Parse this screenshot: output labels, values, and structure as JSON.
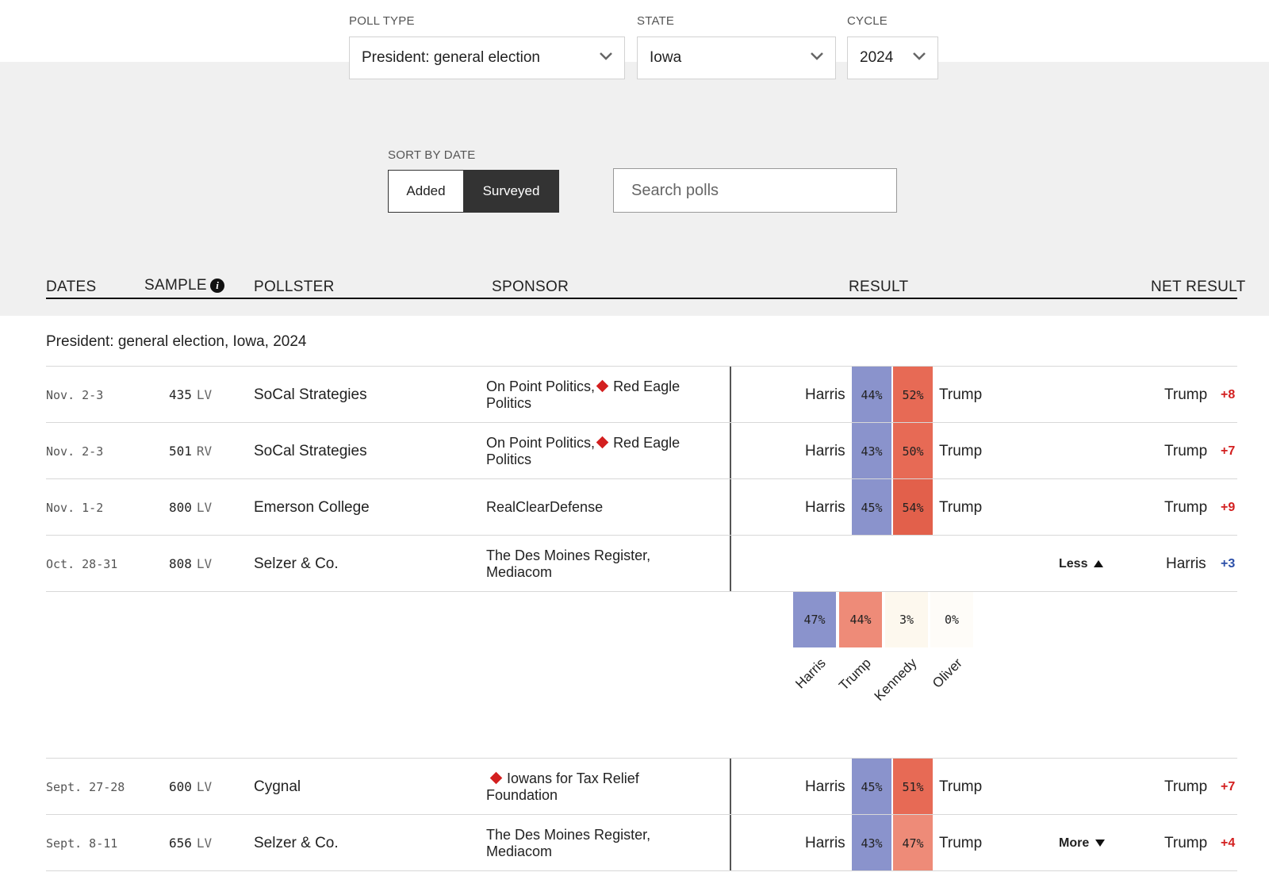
{
  "filters": {
    "poll_type": {
      "label": "POLL TYPE",
      "value": "President: general election"
    },
    "state": {
      "label": "STATE",
      "value": "Iowa"
    },
    "cycle": {
      "label": "CYCLE",
      "value": "2024"
    }
  },
  "sort": {
    "label": "SORT BY DATE",
    "options": [
      "Added",
      "Surveyed"
    ],
    "selected": "Surveyed"
  },
  "search": {
    "placeholder": "Search polls"
  },
  "columns": {
    "dates": "DATES",
    "sample": "SAMPLE",
    "pollster": "POLLSTER",
    "sponsor": "SPONSOR",
    "result": "RESULT",
    "net_result": "NET RESULT"
  },
  "group_title": "President: general election, Iowa, 2024",
  "colors": {
    "harris": "#8a93cc",
    "trump": "#e76a55",
    "trump_light": "#ee8b78",
    "kennedy": "#fdf8ee",
    "oliver": "#fefcf8",
    "rep_accent": "#d31f1f",
    "dem_accent": "#2b4fa8"
  },
  "polls": [
    {
      "date": "Nov. 2-3",
      "sample_n": "435",
      "sample_type": "LV",
      "pollster": "SoCal Strategies",
      "sponsor_a": "On Point Politics,",
      "sponsor_b": "Red Eagle",
      "sponsor_c": "Politics",
      "cand1": "Harris",
      "pct1": "44%",
      "pct2": "52%",
      "cand2": "Trump",
      "net_name": "Trump",
      "net_val": "+8"
    },
    {
      "date": "Nov. 2-3",
      "sample_n": "501",
      "sample_type": "RV",
      "pollster": "SoCal Strategies",
      "sponsor_a": "On Point Politics,",
      "sponsor_b": "Red Eagle",
      "sponsor_c": "Politics",
      "cand1": "Harris",
      "pct1": "43%",
      "pct2": "50%",
      "cand2": "Trump",
      "net_name": "Trump",
      "net_val": "+7"
    },
    {
      "date": "Nov. 1-2",
      "sample_n": "800",
      "sample_type": "LV",
      "pollster": "Emerson College",
      "sponsor": "RealClearDefense",
      "cand1": "Harris",
      "pct1": "45%",
      "pct2": "54%",
      "cand2": "Trump",
      "net_name": "Trump",
      "net_val": "+9"
    },
    {
      "date": "Oct. 28-31",
      "sample_n": "808",
      "sample_type": "LV",
      "pollster": "Selzer & Co.",
      "sponsor_a": "The Des Moines Register,",
      "sponsor_b": "Mediacom",
      "toggle": "Less",
      "net_name": "Harris",
      "net_val": "+3",
      "detail": [
        {
          "name": "Harris",
          "pct": "47%"
        },
        {
          "name": "Trump",
          "pct": "44%"
        },
        {
          "name": "Kennedy",
          "pct": "3%"
        },
        {
          "name": "Oliver",
          "pct": "0%"
        }
      ]
    },
    {
      "date": "Sept. 27-28",
      "sample_n": "600",
      "sample_type": "LV",
      "pollster": "Cygnal",
      "sponsor_a": "Iowans for Tax Relief",
      "sponsor_b": "Foundation",
      "cand1": "Harris",
      "pct1": "45%",
      "pct2": "51%",
      "cand2": "Trump",
      "net_name": "Trump",
      "net_val": "+7"
    },
    {
      "date": "Sept. 8-11",
      "sample_n": "656",
      "sample_type": "LV",
      "pollster": "Selzer & Co.",
      "sponsor_a": "The Des Moines Register,",
      "sponsor_b": "Mediacom",
      "cand1": "Harris",
      "pct1": "43%",
      "pct2": "47%",
      "cand2": "Trump",
      "toggle": "More",
      "net_name": "Trump",
      "net_val": "+4"
    }
  ]
}
